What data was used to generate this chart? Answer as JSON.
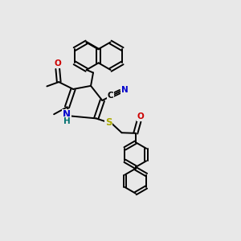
{
  "bg_color": "#e8e8e8",
  "bond_color": "#000000",
  "bond_width": 1.4,
  "atom_colors": {
    "N": "#0000cc",
    "O": "#cc0000",
    "S": "#aaaa00",
    "C": "#000000",
    "H": "#007070"
  },
  "font_size_atom": 8.5,
  "font_size_small": 7.5,
  "xlim": [
    0,
    10
  ],
  "ylim": [
    0,
    10
  ]
}
